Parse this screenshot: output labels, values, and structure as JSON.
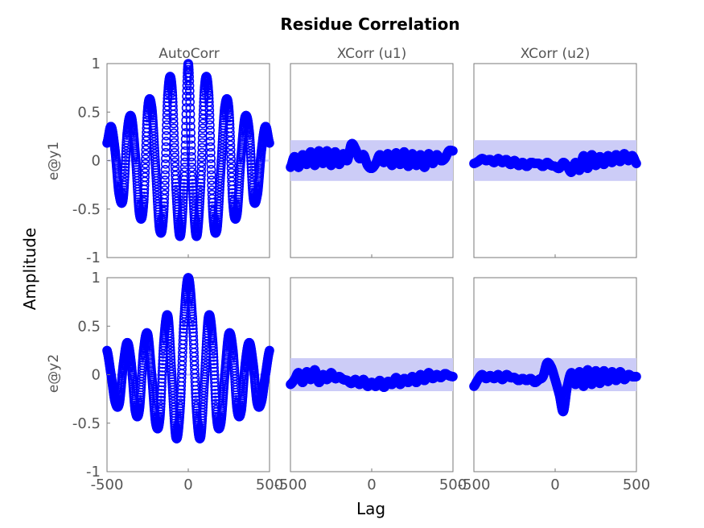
{
  "chart_data": {
    "type": "scatter",
    "title": "Residue Correlation",
    "xlabel": "Lag",
    "ylabel": "Amplitude",
    "columns": [
      "AutoCorr",
      "XCorr (u1)",
      "XCorr (u2)"
    ],
    "rows": [
      "e@y1",
      "e@y2"
    ],
    "xlim": [
      -500,
      500
    ],
    "ylim": [
      -1,
      1
    ],
    "x_ticks": [
      "-500",
      "0",
      "500"
    ],
    "y_ticks": [
      "-1",
      "-0.5",
      "0",
      "0.5",
      "1"
    ],
    "marker_color": "#0000ff",
    "band_color": "#ccccf7",
    "series": [
      {
        "row": 0,
        "col": 0,
        "confidence_band": [
          -0.01,
          0.01
        ],
        "x": [
          -500,
          -475,
          -450,
          -425,
          -400,
          -375,
          -350,
          -325,
          -300,
          -275,
          -250,
          -225,
          -200,
          -175,
          -150,
          -125,
          -100,
          -75,
          -50,
          -25,
          0,
          25,
          50,
          75,
          100,
          125,
          150,
          175,
          200,
          225,
          250,
          275,
          300,
          325,
          350,
          375,
          400,
          425,
          450,
          475,
          500
        ],
        "y": [
          0.18,
          0.35,
          0.1,
          -0.35,
          -0.38,
          0.3,
          0.45,
          0.05,
          -0.55,
          -0.45,
          0.52,
          0.55,
          -0.1,
          -0.72,
          -0.5,
          0.7,
          0.75,
          -0.3,
          -0.78,
          -0.2,
          1.0,
          -0.2,
          -0.78,
          -0.3,
          0.75,
          0.7,
          -0.5,
          -0.72,
          -0.1,
          0.55,
          0.52,
          -0.45,
          -0.55,
          0.05,
          0.45,
          0.3,
          -0.38,
          -0.35,
          0.1,
          0.35,
          0.18
        ]
      },
      {
        "row": 0,
        "col": 1,
        "confidence_band": [
          -0.21,
          0.21
        ],
        "x": [
          -500,
          -475,
          -450,
          -425,
          -400,
          -375,
          -350,
          -325,
          -300,
          -275,
          -250,
          -225,
          -200,
          -175,
          -150,
          -125,
          -100,
          -75,
          -50,
          -25,
          0,
          25,
          50,
          75,
          100,
          125,
          150,
          175,
          200,
          225,
          250,
          275,
          300,
          325,
          350,
          375,
          400,
          425,
          450,
          475,
          500
        ],
        "y": [
          -0.07,
          0.04,
          -0.07,
          0.06,
          -0.04,
          0.09,
          -0.05,
          0.1,
          -0.03,
          0.1,
          -0.05,
          0.09,
          -0.04,
          0.07,
          0.0,
          0.17,
          0.12,
          0.02,
          0.06,
          -0.05,
          -0.08,
          -0.03,
          0.06,
          -0.02,
          0.07,
          -0.05,
          0.08,
          -0.04,
          0.09,
          -0.06,
          0.07,
          -0.05,
          0.06,
          -0.07,
          0.07,
          -0.03,
          0.06,
          0.0,
          0.02,
          0.1,
          0.1
        ]
      },
      {
        "row": 0,
        "col": 2,
        "confidence_band": [
          -0.21,
          0.21
        ],
        "x": [
          -500,
          -475,
          -450,
          -425,
          -400,
          -375,
          -350,
          -325,
          -300,
          -275,
          -250,
          -225,
          -200,
          -175,
          -150,
          -125,
          -100,
          -75,
          -50,
          -25,
          0,
          25,
          50,
          75,
          100,
          125,
          150,
          175,
          200,
          225,
          250,
          275,
          300,
          325,
          350,
          375,
          400,
          425,
          450,
          475,
          500
        ],
        "y": [
          -0.03,
          -0.01,
          0.02,
          0.0,
          0.01,
          -0.02,
          0.02,
          -0.02,
          0.01,
          -0.04,
          0.0,
          -0.05,
          -0.02,
          -0.06,
          -0.02,
          -0.03,
          -0.03,
          -0.06,
          -0.02,
          -0.05,
          -0.06,
          -0.08,
          -0.02,
          -0.06,
          -0.12,
          -0.02,
          -0.1,
          0.05,
          -0.08,
          0.06,
          -0.05,
          0.04,
          -0.04,
          0.05,
          -0.02,
          0.06,
          -0.01,
          0.07,
          0.0,
          0.05,
          -0.03
        ]
      },
      {
        "row": 1,
        "col": 0,
        "confidence_band": [
          -0.01,
          0.01
        ],
        "x": [
          -500,
          -475,
          -450,
          -425,
          -400,
          -375,
          -350,
          -325,
          -300,
          -275,
          -250,
          -225,
          -200,
          -175,
          -150,
          -125,
          -100,
          -75,
          -50,
          -25,
          0,
          25,
          50,
          75,
          100,
          125,
          150,
          175,
          200,
          225,
          250,
          275,
          300,
          325,
          350,
          375,
          400,
          425,
          450,
          475,
          500
        ],
        "y": [
          0.25,
          0.0,
          -0.28,
          -0.3,
          0.1,
          0.33,
          0.1,
          -0.38,
          -0.35,
          0.25,
          0.42,
          0.0,
          -0.5,
          -0.45,
          0.35,
          0.6,
          -0.05,
          -0.65,
          -0.35,
          0.6,
          1.0,
          0.6,
          -0.35,
          -0.65,
          -0.05,
          0.6,
          0.35,
          -0.45,
          -0.5,
          0.0,
          0.42,
          0.25,
          -0.35,
          -0.38,
          0.1,
          0.33,
          0.1,
          -0.3,
          -0.28,
          0.0,
          0.25
        ]
      },
      {
        "row": 1,
        "col": 1,
        "confidence_band": [
          -0.17,
          0.17
        ],
        "x": [
          -500,
          -475,
          -450,
          -425,
          -400,
          -375,
          -350,
          -325,
          -300,
          -275,
          -250,
          -225,
          -200,
          -175,
          -150,
          -125,
          -100,
          -75,
          -50,
          -25,
          0,
          25,
          50,
          75,
          100,
          125,
          150,
          175,
          200,
          225,
          250,
          275,
          300,
          325,
          350,
          375,
          400,
          425,
          450,
          475,
          500
        ],
        "y": [
          -0.1,
          -0.05,
          0.02,
          -0.08,
          0.03,
          -0.05,
          0.05,
          -0.08,
          0.0,
          -0.05,
          0.02,
          -0.04,
          -0.02,
          -0.05,
          -0.06,
          -0.09,
          -0.05,
          -0.1,
          -0.05,
          -0.12,
          -0.08,
          -0.12,
          -0.06,
          -0.13,
          -0.07,
          -0.1,
          -0.03,
          -0.1,
          -0.04,
          -0.08,
          -0.02,
          -0.08,
          0.0,
          -0.06,
          0.02,
          -0.04,
          0.0,
          -0.03,
          0.01,
          -0.01,
          -0.02
        ]
      },
      {
        "row": 1,
        "col": 2,
        "confidence_band": [
          -0.17,
          0.17
        ],
        "x": [
          -500,
          -475,
          -450,
          -425,
          -400,
          -375,
          -350,
          -325,
          -300,
          -275,
          -250,
          -225,
          -200,
          -175,
          -150,
          -125,
          -100,
          -75,
          -50,
          -25,
          0,
          25,
          50,
          75,
          100,
          125,
          150,
          175,
          200,
          225,
          250,
          275,
          300,
          325,
          350,
          375,
          400,
          425,
          450,
          475,
          500
        ],
        "y": [
          -0.12,
          -0.05,
          0.0,
          -0.04,
          -0.01,
          -0.04,
          0.0,
          -0.05,
          0.0,
          -0.03,
          -0.03,
          -0.06,
          -0.04,
          -0.06,
          -0.04,
          -0.08,
          -0.05,
          -0.02,
          0.12,
          0.08,
          -0.05,
          -0.2,
          -0.38,
          -0.12,
          0.02,
          -0.1,
          0.03,
          -0.12,
          0.05,
          -0.1,
          0.04,
          -0.09,
          0.04,
          -0.07,
          0.03,
          -0.06,
          0.03,
          -0.05,
          0.0,
          -0.02,
          -0.02
        ]
      }
    ]
  }
}
